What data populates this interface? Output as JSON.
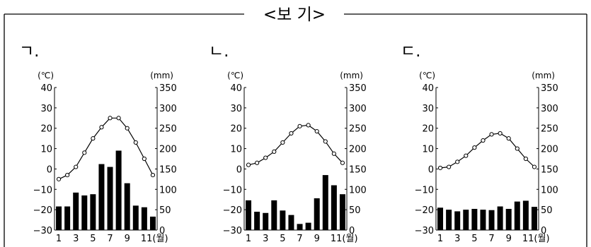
{
  "box_title": "<보 기>",
  "chart_data": [
    {
      "type": "bar+line",
      "label": "ㄱ.",
      "left_unit": "(℃)",
      "right_unit": "(mm)",
      "left_ticks": [
        "40",
        "30",
        "20",
        "10",
        "0",
        "−10",
        "−20",
        "−30"
      ],
      "right_ticks": [
        "350",
        "300",
        "250",
        "200",
        "150",
        "100",
        "50",
        "0"
      ],
      "x_ticks": [
        "1",
        "3",
        "5",
        "7",
        "9",
        "11(월)"
      ],
      "ylim_temp": [
        -30,
        40
      ],
      "ylim_precip": [
        0,
        350
      ],
      "months": [
        1,
        2,
        3,
        4,
        5,
        6,
        7,
        8,
        9,
        10,
        11,
        12
      ],
      "temperature": [
        -5,
        -3,
        1,
        8,
        15,
        20.5,
        25,
        25,
        20,
        13,
        5,
        -3
      ],
      "precipitation": [
        58,
        58,
        92,
        85,
        88,
        162,
        155,
        195,
        115,
        60,
        56,
        33
      ]
    },
    {
      "type": "bar+line",
      "label": "ㄴ.",
      "left_unit": "(℃)",
      "right_unit": "(mm)",
      "left_ticks": [
        "40",
        "30",
        "20",
        "10",
        "0",
        "−10",
        "−20",
        "−30"
      ],
      "right_ticks": [
        "350",
        "300",
        "250",
        "200",
        "150",
        "100",
        "50",
        "0"
      ],
      "x_ticks": [
        "1",
        "3",
        "5",
        "7",
        "9",
        "11(월)"
      ],
      "ylim_temp": [
        -30,
        40
      ],
      "ylim_precip": [
        0,
        350
      ],
      "months": [
        1,
        2,
        3,
        4,
        5,
        6,
        7,
        8,
        9,
        10,
        11,
        12
      ],
      "temperature": [
        2,
        3,
        5.5,
        8.5,
        13,
        17.5,
        21,
        21.5,
        18.5,
        13.5,
        7.5,
        3
      ],
      "precipitation": [
        73,
        45,
        42,
        73,
        48,
        37,
        15,
        18,
        78,
        135,
        110,
        88
      ]
    },
    {
      "type": "bar+line",
      "label": "ㄷ.",
      "left_unit": "(℃)",
      "right_unit": "(mm)",
      "left_ticks": [
        "40",
        "30",
        "20",
        "10",
        "0",
        "−10",
        "−20",
        "−30"
      ],
      "right_ticks": [
        "350",
        "300",
        "250",
        "200",
        "150",
        "100",
        "50",
        "0"
      ],
      "x_ticks": [
        "1",
        "3",
        "5",
        "7",
        "9",
        "11(월)"
      ],
      "ylim_temp": [
        -30,
        40
      ],
      "ylim_precip": [
        0,
        350
      ],
      "months": [
        1,
        2,
        3,
        4,
        5,
        6,
        7,
        8,
        9,
        10,
        11,
        12
      ],
      "temperature": [
        0.5,
        1,
        3.5,
        6.5,
        10.5,
        14,
        17,
        17.5,
        15,
        10,
        5,
        1
      ],
      "precipitation": [
        55,
        50,
        46,
        50,
        52,
        50,
        49,
        58,
        52,
        70,
        72,
        57
      ]
    }
  ]
}
